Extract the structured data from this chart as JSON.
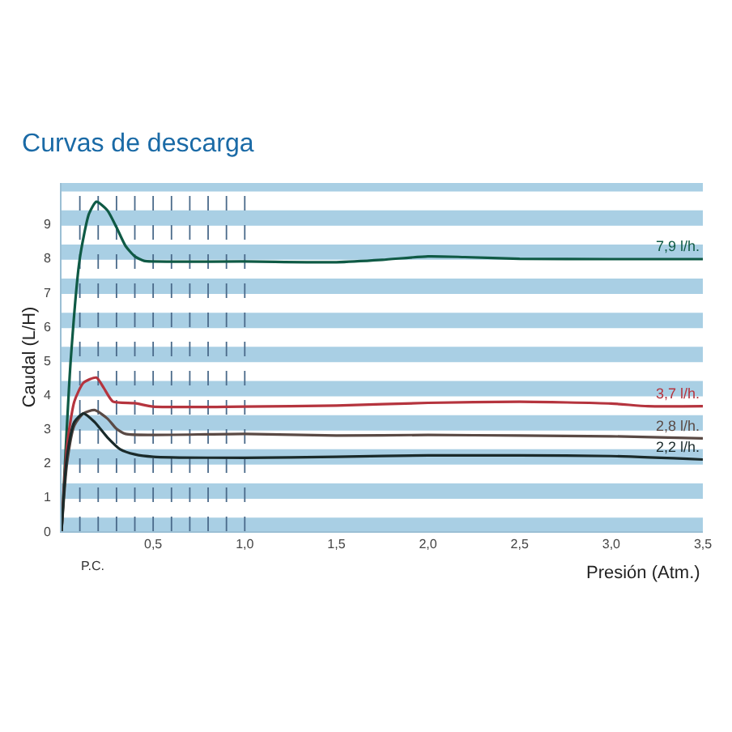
{
  "chart_data": {
    "type": "line",
    "title": "Curvas de descarga",
    "xlabel": "Presión (Atm.)",
    "ylabel": "Caudal (L/H)",
    "xlim": [
      0,
      3.5
    ],
    "ylim": [
      0,
      10.2
    ],
    "xticks": [
      {
        "value": 0.5,
        "label": "0,5"
      },
      {
        "value": 1.0,
        "label": "1,0"
      },
      {
        "value": 1.5,
        "label": "1,5"
      },
      {
        "value": 2.0,
        "label": "2,0"
      },
      {
        "value": 2.5,
        "label": "2,5"
      },
      {
        "value": 3.0,
        "label": "3,0"
      },
      {
        "value": 3.5,
        "label": "3,5"
      }
    ],
    "yticks": [
      0,
      1,
      2,
      3,
      4,
      5,
      6,
      7,
      8,
      9
    ],
    "grid": false,
    "legend": false,
    "marker": "none",
    "line_style": "solid",
    "series": [
      {
        "name": "7,9 l/h.",
        "color": "#0f5a45",
        "x": [
          0,
          0.05,
          0.1,
          0.15,
          0.19,
          0.25,
          0.3,
          0.35,
          0.4,
          0.45,
          0.5,
          1.0,
          1.5,
          1.75,
          2.0,
          2.2,
          2.5,
          3.0,
          3.5
        ],
        "values": [
          0,
          5.0,
          8.0,
          9.3,
          9.65,
          9.4,
          8.9,
          8.35,
          8.05,
          7.92,
          7.9,
          7.9,
          7.88,
          7.95,
          8.05,
          8.03,
          7.98,
          7.97,
          7.97
        ]
      },
      {
        "name": "3,7 l/h.",
        "color": "#b5343e",
        "x": [
          0,
          0.03,
          0.07,
          0.12,
          0.19,
          0.23,
          0.28,
          0.4,
          0.5,
          1.0,
          1.5,
          2.0,
          2.5,
          3.0,
          3.2,
          3.5
        ],
        "values": [
          0,
          2.5,
          3.8,
          4.35,
          4.5,
          4.2,
          3.8,
          3.75,
          3.65,
          3.65,
          3.68,
          3.76,
          3.79,
          3.74,
          3.66,
          3.66
        ]
      },
      {
        "name": "2,8 l/h.",
        "color": "#5a4a45",
        "x": [
          0,
          0.03,
          0.07,
          0.12,
          0.18,
          0.25,
          0.3,
          0.35,
          0.5,
          1.0,
          1.5,
          2.0,
          2.5,
          3.0,
          3.5
        ],
        "values": [
          0,
          2.0,
          3.1,
          3.45,
          3.55,
          3.3,
          3.0,
          2.85,
          2.82,
          2.85,
          2.8,
          2.82,
          2.8,
          2.78,
          2.72
        ]
      },
      {
        "name": "2,2 l/h.",
        "color": "#1a2a2a",
        "x": [
          0,
          0.03,
          0.07,
          0.12,
          0.18,
          0.25,
          0.32,
          0.4,
          0.5,
          1.0,
          1.5,
          2.0,
          2.5,
          3.0,
          3.5
        ],
        "values": [
          0,
          2.2,
          3.2,
          3.45,
          3.2,
          2.75,
          2.4,
          2.25,
          2.18,
          2.15,
          2.18,
          2.22,
          2.22,
          2.2,
          2.1
        ]
      }
    ],
    "ref_lines": [
      {
        "axis": "x",
        "value": 0.1,
        "color": "#4a6a8a",
        "line_style": "dashed"
      },
      {
        "axis": "x",
        "value": 0.2,
        "color": "#4a6a8a",
        "line_style": "dashed"
      },
      {
        "axis": "x",
        "value": 0.3,
        "color": "#4a6a8a",
        "line_style": "dashed"
      },
      {
        "axis": "x",
        "value": 0.4,
        "color": "#4a6a8a",
        "line_style": "dashed"
      },
      {
        "axis": "x",
        "value": 0.5,
        "color": "#4a6a8a",
        "line_style": "dashed"
      },
      {
        "axis": "x",
        "value": 0.6,
        "color": "#4a6a8a",
        "line_style": "dashed"
      },
      {
        "axis": "x",
        "value": 0.7,
        "color": "#4a6a8a",
        "line_style": "dashed"
      },
      {
        "axis": "x",
        "value": 0.8,
        "color": "#4a6a8a",
        "line_style": "dashed"
      },
      {
        "axis": "x",
        "value": 0.9,
        "color": "#4a6a8a",
        "line_style": "dashed"
      },
      {
        "axis": "x",
        "value": 1.0,
        "color": "#4a6a8a",
        "line_style": "dashed"
      }
    ],
    "bands": [
      {
        "axis": "y",
        "from": 0,
        "to": 0.4,
        "color": "#a9cfe4"
      },
      {
        "axis": "y",
        "from": 0.95,
        "to": 1.4,
        "color": "#a9cfe4"
      },
      {
        "axis": "y",
        "from": 1.95,
        "to": 2.4,
        "color": "#a9cfe4"
      },
      {
        "axis": "y",
        "from": 2.95,
        "to": 3.4,
        "color": "#a9cfe4"
      },
      {
        "axis": "y",
        "from": 3.95,
        "to": 4.4,
        "color": "#a9cfe4"
      },
      {
        "axis": "y",
        "from": 4.95,
        "to": 5.4,
        "color": "#a9cfe4"
      },
      {
        "axis": "y",
        "from": 5.95,
        "to": 6.4,
        "color": "#a9cfe4"
      },
      {
        "axis": "y",
        "from": 6.95,
        "to": 7.4,
        "color": "#a9cfe4"
      },
      {
        "axis": "y",
        "from": 7.95,
        "to": 8.4,
        "color": "#a9cfe4"
      },
      {
        "axis": "y",
        "from": 8.95,
        "to": 9.4,
        "color": "#a9cfe4"
      },
      {
        "axis": "y",
        "from": 9.95,
        "to": 10.2,
        "color": "#a9cfe4"
      }
    ],
    "annotations": [
      "P.C."
    ]
  }
}
